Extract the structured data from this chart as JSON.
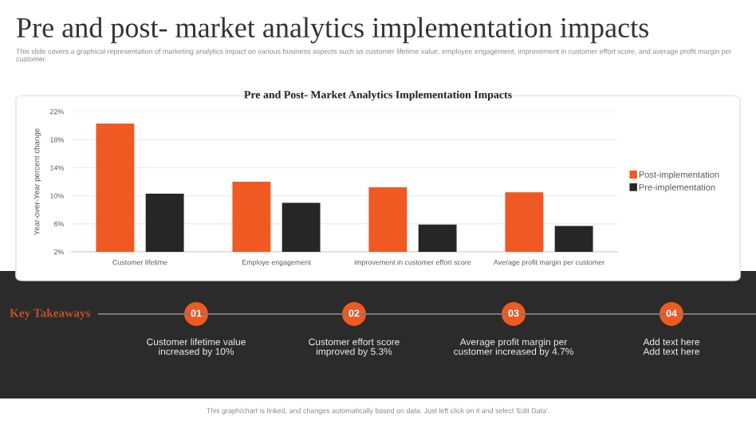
{
  "chart_data": {
    "type": "bar",
    "title": "Pre and post- market analytics implementation impacts",
    "subtitle": "This slide covers a graphical representation of marketing analytics impact on various business aspects such as customer lifetime value, employee engagement, improvement in customer effort score, and average profit margin per customer.",
    "ylabel": "Year-over-Year percent change",
    "categories": [
      "Customer lifetime",
      "Employe engagement",
      "improvement in customer effort score",
      "Average profit margin per customer"
    ],
    "series": [
      {
        "name": "Post-implementation",
        "color": "#f05a22",
        "values": [
          20.3,
          12.0,
          11.2,
          10.5
        ]
      },
      {
        "name": "Pre-implementation",
        "color": "#262626",
        "values": [
          10.3,
          9.0,
          5.9,
          5.7
        ]
      }
    ],
    "ylim": [
      2,
      22
    ],
    "yticks": [
      {
        "value": 2,
        "label": "2%"
      },
      {
        "value": 6,
        "label": "6%"
      },
      {
        "value": 10,
        "label": "10%"
      },
      {
        "value": 14,
        "label": "14%"
      },
      {
        "value": 18,
        "label": "18%"
      },
      {
        "value": 22,
        "label": "22%"
      }
    ],
    "grid": "y",
    "legend": "right",
    "annotations": [
      "Pre and Post- Market Analytics Implementation Impacts",
      "Key Takeaways",
      "01",
      "02",
      "03",
      "04",
      "Customer lifetime value\nincreased by 10%",
      "Customer effort score\nimproved by 5.3%",
      "Average profit margin per\ncustomer increased by 4.7%",
      "Add text here\nAdd text here",
      "This graph/chart is linked, and changes automatically based on data. Just left click on it and select 'Edit Data'."
    ]
  }
}
